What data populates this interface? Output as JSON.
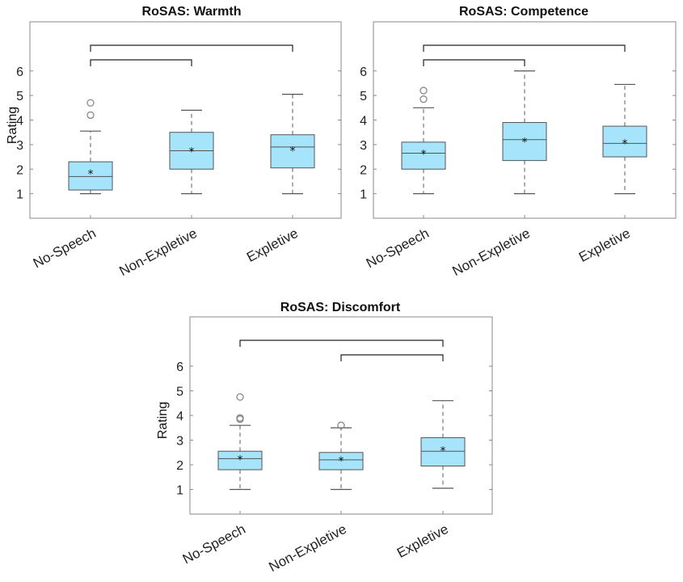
{
  "chart_data": [
    {
      "type": "box",
      "title": "RoSAS: Warmth",
      "ylabel": "Rating",
      "ylim": [
        0,
        8
      ],
      "yticks": [
        1,
        2,
        3,
        4,
        5,
        6
      ],
      "categories": [
        "No-Speech",
        "Non-Expletive",
        "Expletive"
      ],
      "boxes": [
        {
          "whisker_low": 1.0,
          "q1": 1.15,
          "median": 1.7,
          "q3": 2.3,
          "whisker_high": 3.55,
          "mean": 1.85,
          "outliers": [
            4.2,
            4.7
          ]
        },
        {
          "whisker_low": 1.0,
          "q1": 2.0,
          "median": 2.75,
          "q3": 3.5,
          "whisker_high": 4.4,
          "mean": 2.75,
          "outliers": []
        },
        {
          "whisker_low": 1.0,
          "q1": 2.05,
          "median": 2.9,
          "q3": 3.4,
          "whisker_high": 5.05,
          "mean": 2.78,
          "outliers": []
        }
      ],
      "significance": [
        {
          "from": 0,
          "to": 2,
          "level": 1
        },
        {
          "from": 0,
          "to": 1,
          "level": 0
        }
      ]
    },
    {
      "type": "box",
      "title": "RoSAS: Competence",
      "ylabel": "",
      "ylim": [
        0,
        8
      ],
      "yticks": [
        1,
        2,
        3,
        4,
        5,
        6
      ],
      "categories": [
        "No-Speech",
        "Non-Expletive",
        "Expletive"
      ],
      "boxes": [
        {
          "whisker_low": 1.0,
          "q1": 2.0,
          "median": 2.65,
          "q3": 3.1,
          "whisker_high": 4.5,
          "mean": 2.65,
          "outliers": [
            4.85,
            5.2
          ]
        },
        {
          "whisker_low": 1.0,
          "q1": 2.35,
          "median": 3.2,
          "q3": 3.9,
          "whisker_high": 6.0,
          "mean": 3.15,
          "outliers": []
        },
        {
          "whisker_low": 1.0,
          "q1": 2.5,
          "median": 3.05,
          "q3": 3.75,
          "whisker_high": 5.45,
          "mean": 3.07,
          "outliers": []
        }
      ],
      "significance": [
        {
          "from": 0,
          "to": 2,
          "level": 1
        },
        {
          "from": 0,
          "to": 1,
          "level": 0
        }
      ]
    },
    {
      "type": "box",
      "title": "RoSAS: Discomfort",
      "ylabel": "Rating",
      "ylim": [
        0,
        8
      ],
      "yticks": [
        1,
        2,
        3,
        4,
        5,
        6
      ],
      "categories": [
        "No-Speech",
        "Non-Expletive",
        "Expletive"
      ],
      "boxes": [
        {
          "whisker_low": 1.0,
          "q1": 1.8,
          "median": 2.25,
          "q3": 2.55,
          "whisker_high": 3.6,
          "mean": 2.25,
          "outliers": [
            3.85,
            3.9,
            4.75
          ]
        },
        {
          "whisker_low": 1.0,
          "q1": 1.8,
          "median": 2.2,
          "q3": 2.5,
          "whisker_high": 3.5,
          "mean": 2.2,
          "outliers": [
            3.6
          ]
        },
        {
          "whisker_low": 1.05,
          "q1": 1.95,
          "median": 2.55,
          "q3": 3.1,
          "whisker_high": 4.6,
          "mean": 2.6,
          "outliers": []
        }
      ],
      "significance": [
        {
          "from": 0,
          "to": 2,
          "level": 1
        },
        {
          "from": 1,
          "to": 2,
          "level": 0
        }
      ]
    }
  ],
  "style": {
    "box_fill": "#a6e4fb",
    "box_stroke": "#555555",
    "whisker_color": "#777777",
    "outlier_color": "#888888",
    "axis_color": "#888888",
    "bracket_color": "#222222"
  }
}
